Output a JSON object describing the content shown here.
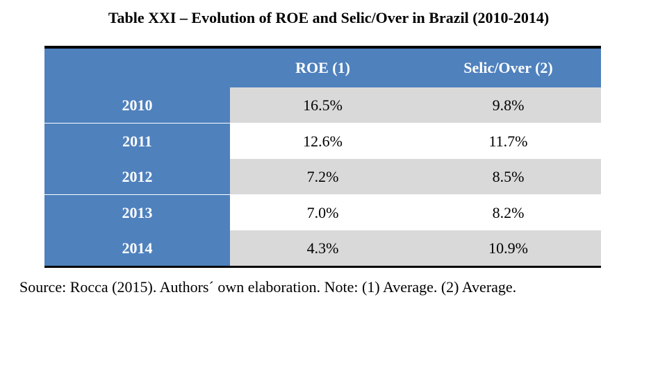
{
  "title": "Table XXI – Evolution of ROE and Selic/Over in Brazil (2010-2014)",
  "table": {
    "headers": [
      "",
      "ROE (1)",
      "Selic/Over (2)"
    ],
    "rows": [
      {
        "year": "2010",
        "roe": "16.5%",
        "selic": "9.8%"
      },
      {
        "year": "2011",
        "roe": "12.6%",
        "selic": "11.7%"
      },
      {
        "year": "2012",
        "roe": "7.2%",
        "selic": "8.5%"
      },
      {
        "year": "2013",
        "roe": "7.0%",
        "selic": "8.2%"
      },
      {
        "year": "2014",
        "roe": "4.3%",
        "selic": "10.9%"
      }
    ]
  },
  "colors": {
    "header_blue": "#4f81bd",
    "shade_gray": "#d9d9d9"
  },
  "source": "Source: Rocca (2015). Authors´ own elaboration. Note: (1) Average. (2) Average."
}
